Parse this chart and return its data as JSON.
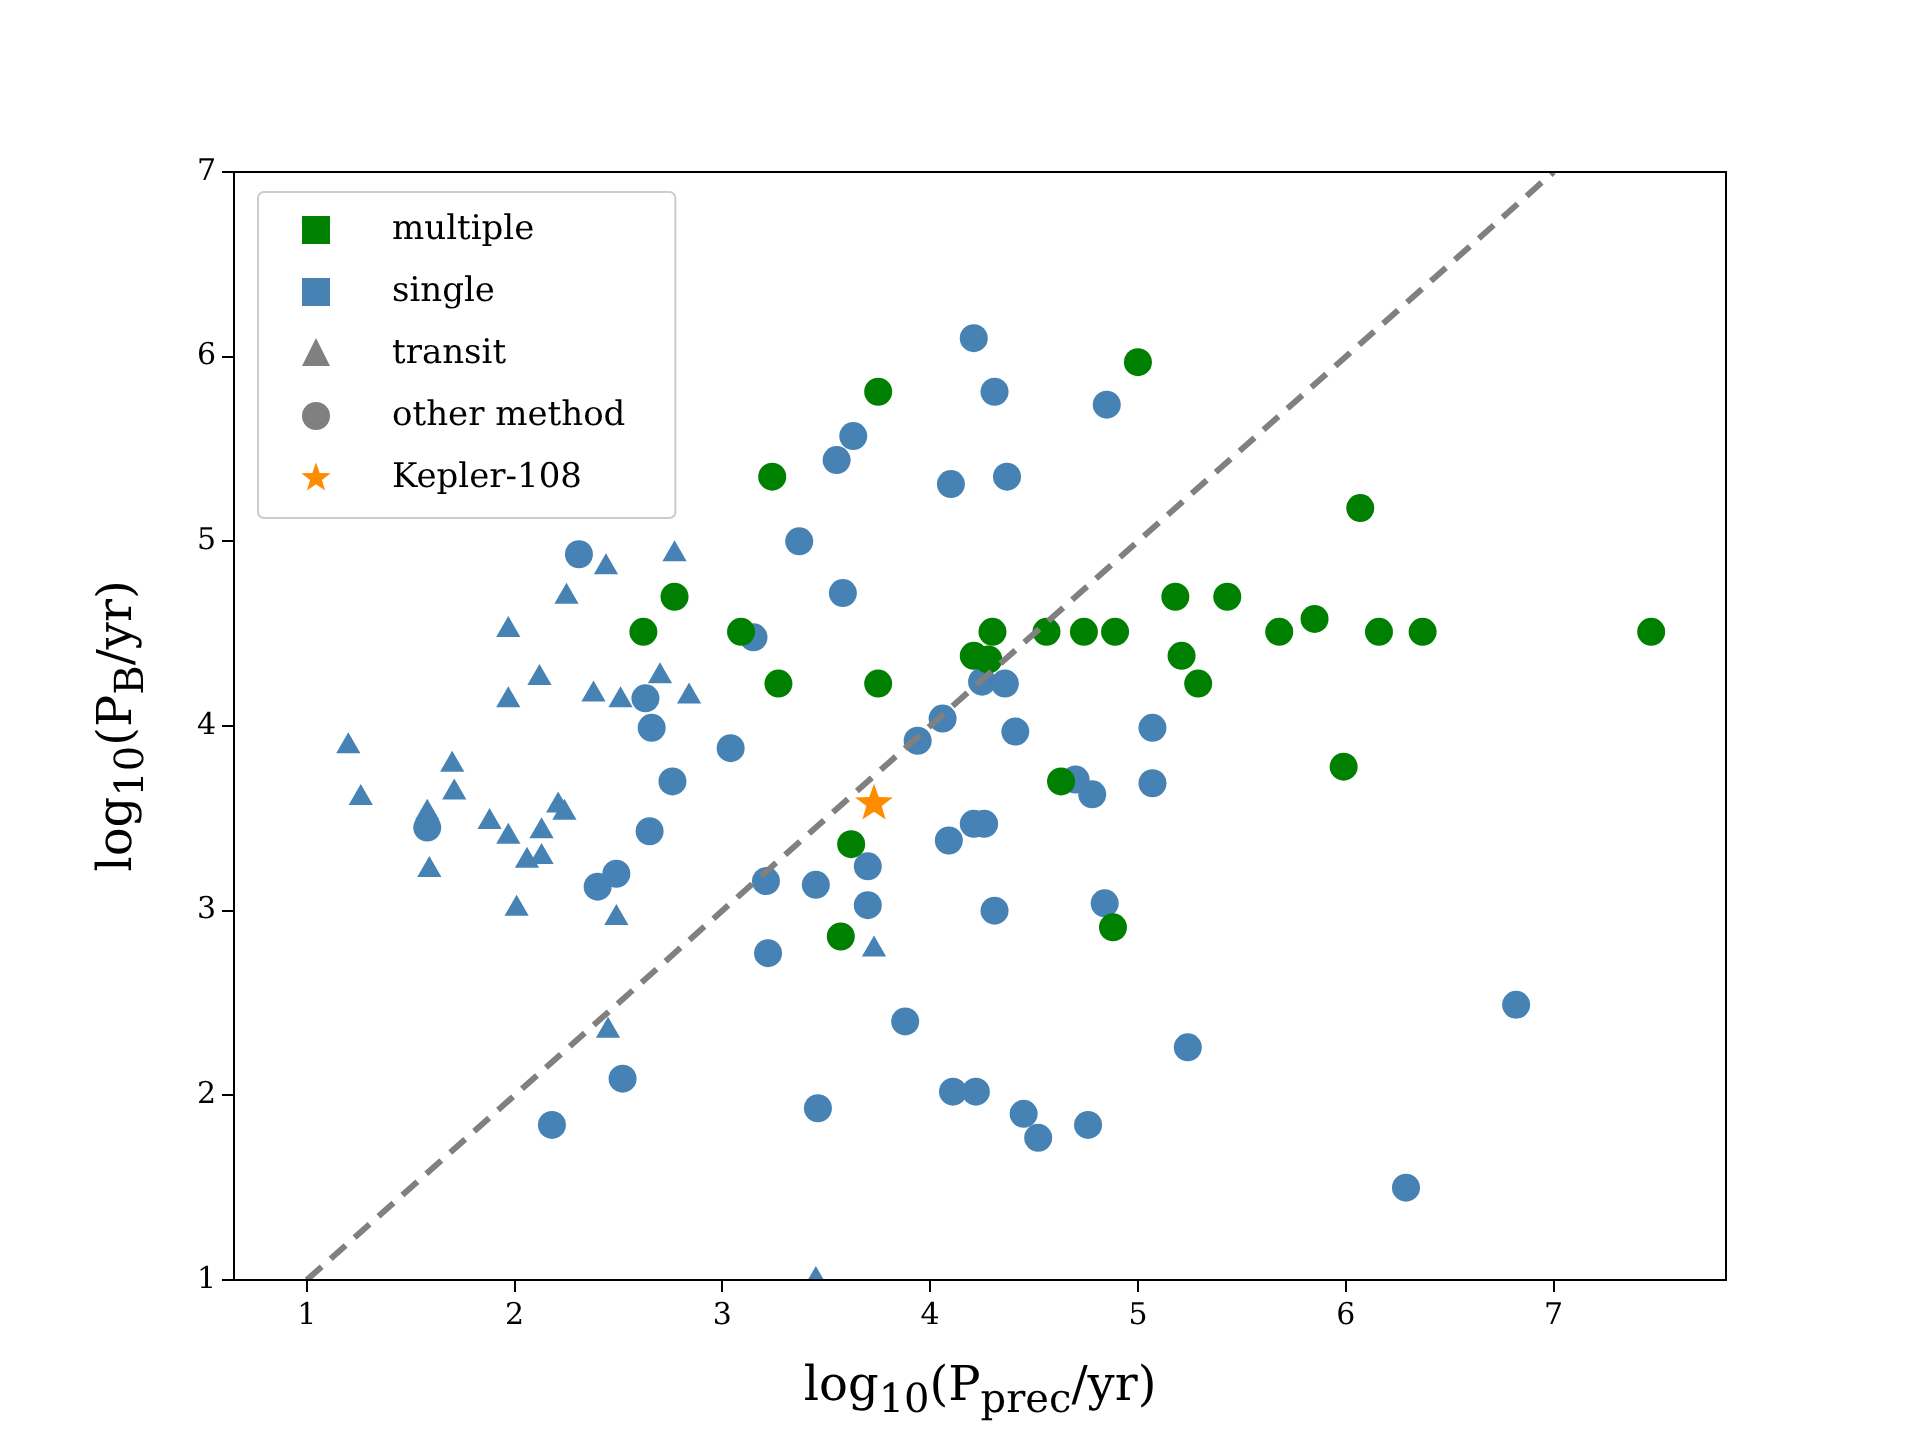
{
  "chart_data": {
    "type": "scatter",
    "xlabel": "log$_{10}$(P$_{prec}$/yr)",
    "ylabel": "log$_{10}$(P$_{B}$/yr)",
    "xlim": [
      0.65,
      7.83
    ],
    "ylim": [
      1,
      7
    ],
    "xticks": [
      1,
      2,
      3,
      4,
      5,
      6,
      7
    ],
    "yticks": [
      1,
      2,
      3,
      4,
      5,
      6,
      7
    ],
    "grid": false,
    "legend": "top left",
    "series": [
      {
        "name": "multiple",
        "color": "#008000",
        "marker": "square"
      },
      {
        "name": "single",
        "color": "#4682b4",
        "marker": "square"
      },
      {
        "name": "transit",
        "color": "#808080",
        "marker": "triangle"
      },
      {
        "name": "other method",
        "color": "#808080",
        "marker": "circle"
      },
      {
        "type": "line",
        "color": "#808080",
        "line_style": "dashed",
        "marker": "none",
        "x": [
          1,
          7
        ],
        "values": [
          1,
          7
        ]
      },
      {
        "color": "#008000",
        "marker": "circle",
        "x": [
          2.62,
          2.77,
          3.09,
          3.24,
          3.27,
          3.75,
          3.75,
          3.62,
          3.57,
          4.21,
          4.28,
          4.3,
          4.56,
          4.74,
          4.89,
          5.0,
          4.63,
          4.88,
          5.18,
          5.21,
          5.29,
          5.43,
          5.68,
          5.85,
          6.07,
          5.99,
          6.16,
          6.37,
          7.47
        ],
        "values": [
          4.51,
          4.7,
          4.51,
          5.35,
          4.23,
          5.81,
          4.23,
          3.36,
          2.86,
          4.38,
          4.36,
          4.51,
          4.51,
          4.51,
          4.51,
          5.97,
          3.7,
          2.91,
          4.7,
          4.38,
          4.23,
          4.7,
          4.51,
          4.58,
          5.18,
          3.78,
          4.51,
          4.51,
          4.51
        ]
      },
      {
        "color": "#4682b4",
        "marker": "triangle",
        "x": [
          1.2,
          1.26,
          1.58,
          1.59,
          1.7,
          1.71,
          1.88,
          1.97,
          1.97,
          1.97,
          2.01,
          2.06,
          2.13,
          2.13,
          2.21,
          2.24,
          2.12,
          2.25,
          2.38,
          2.44,
          2.51,
          2.49,
          2.45,
          2.7,
          2.77,
          2.84,
          3.73,
          3.45
        ],
        "values": [
          3.89,
          3.61,
          3.53,
          3.22,
          3.79,
          3.64,
          3.48,
          3.4,
          4.14,
          4.52,
          3.01,
          3.27,
          3.29,
          3.43,
          3.57,
          3.53,
          4.26,
          4.7,
          4.17,
          4.86,
          4.14,
          2.96,
          2.35,
          4.27,
          4.93,
          4.16,
          2.79,
          1.0
        ]
      },
      {
        "color": "#4682b4",
        "marker": "circle",
        "x": [
          2.31,
          2.63,
          2.66,
          1.58,
          3.04,
          2.76,
          2.65,
          2.4,
          2.49,
          2.52,
          2.18,
          4.21,
          4.31,
          4.85,
          3.63,
          3.55,
          4.1,
          4.37,
          3.37,
          3.58,
          3.15,
          4.25,
          4.36,
          4.41,
          4.06,
          3.94,
          5.07,
          5.07,
          4.7,
          4.78,
          4.21,
          4.26,
          4.09,
          3.7,
          3.45,
          3.21,
          3.7,
          4.31,
          4.84,
          3.22,
          3.88,
          3.46,
          4.11,
          4.22,
          4.45,
          4.52,
          4.76,
          5.24,
          6.82,
          6.29
        ],
        "values": [
          4.93,
          4.15,
          3.99,
          3.45,
          3.88,
          3.7,
          3.43,
          3.13,
          3.2,
          2.09,
          1.84,
          6.1,
          5.81,
          5.74,
          5.57,
          5.44,
          5.31,
          5.35,
          5.0,
          4.72,
          4.48,
          4.24,
          4.23,
          3.97,
          4.04,
          3.92,
          3.99,
          3.69,
          3.71,
          3.63,
          3.47,
          3.47,
          3.38,
          3.24,
          3.14,
          3.16,
          3.03,
          3.0,
          3.04,
          2.77,
          2.4,
          1.93,
          2.02,
          2.02,
          1.9,
          1.77,
          1.84,
          2.26,
          2.49,
          1.5
        ]
      },
      {
        "name": "Kepler-108",
        "color": "#ff8c00",
        "marker": "star",
        "x": [
          3.73
        ],
        "values": [
          3.58
        ]
      }
    ]
  }
}
